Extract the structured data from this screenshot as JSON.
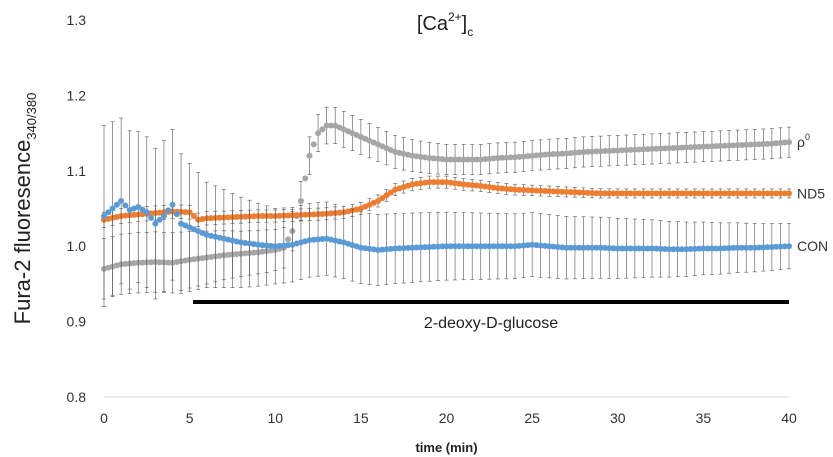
{
  "chart_data": {
    "type": "scatter",
    "title": "[Ca2+]c",
    "title_parts": {
      "base": "[Ca",
      "superscript": "2+",
      "close": "]",
      "subscript": "c"
    },
    "xlabel": "time (min)",
    "ylabel": "Fura-2 fluoresence340/380",
    "ylabel_parts": {
      "base": "Fura-2 fluoresence",
      "subscript": "340/380"
    },
    "xlim": [
      0,
      40
    ],
    "ylim": [
      0.8,
      1.3
    ],
    "x_ticks": [
      "0",
      "5",
      "10",
      "15",
      "20",
      "25",
      "30",
      "35",
      "40"
    ],
    "y_ticks": [
      "0.8",
      "0.9",
      "1.0",
      "1.1",
      "1.2",
      "1.3"
    ],
    "grid": false,
    "error_bars": true,
    "treatment_bar": {
      "label": "2-deoxy-D-glucose",
      "x_start": 5.2,
      "x_end": 40,
      "y": 0.926
    },
    "series": [
      {
        "name": "ρ0",
        "label_parts": {
          "base": "ρ",
          "superscript": "0"
        },
        "color": "#a6a6a6",
        "points": [
          [
            0,
            0.97
          ],
          [
            1,
            0.976
          ],
          [
            2,
            0.978
          ],
          [
            3,
            0.979
          ],
          [
            4,
            0.978
          ],
          [
            5,
            0.982
          ],
          [
            6,
            0.985
          ],
          [
            7,
            0.988
          ],
          [
            8,
            0.99
          ],
          [
            9,
            0.992
          ],
          [
            10,
            0.995
          ],
          [
            10.5,
            0.998
          ],
          [
            11,
            1.02
          ],
          [
            11.5,
            1.06
          ],
          [
            12,
            1.12
          ],
          [
            12.5,
            1.15
          ],
          [
            13,
            1.16
          ],
          [
            13.5,
            1.16
          ],
          [
            14,
            1.155
          ],
          [
            15,
            1.145
          ],
          [
            16,
            1.135
          ],
          [
            17,
            1.125
          ],
          [
            18,
            1.12
          ],
          [
            19,
            1.117
          ],
          [
            20,
            1.115
          ],
          [
            21,
            1.115
          ],
          [
            22,
            1.115
          ],
          [
            23,
            1.117
          ],
          [
            24,
            1.118
          ],
          [
            25,
            1.12
          ],
          [
            26,
            1.122
          ],
          [
            27,
            1.123
          ],
          [
            28,
            1.125
          ],
          [
            29,
            1.126
          ],
          [
            30,
            1.127
          ],
          [
            31,
            1.128
          ],
          [
            32,
            1.129
          ],
          [
            33,
            1.13
          ],
          [
            34,
            1.131
          ],
          [
            35,
            1.132
          ],
          [
            36,
            1.133
          ],
          [
            37,
            1.134
          ],
          [
            38,
            1.135
          ],
          [
            39,
            1.136
          ],
          [
            40,
            1.138
          ]
        ],
        "error": [
          [
            0,
            0.04
          ],
          [
            4,
            0.04
          ],
          [
            8,
            0.03
          ],
          [
            12,
            0.025
          ],
          [
            20,
            0.02
          ],
          [
            30,
            0.02
          ],
          [
            40,
            0.02
          ]
        ]
      },
      {
        "name": "ND5",
        "color": "#ed7d31",
        "points": [
          [
            0,
            1.035
          ],
          [
            1,
            1.04
          ],
          [
            2,
            1.042
          ],
          [
            3,
            1.044
          ],
          [
            4,
            1.046
          ],
          [
            5,
            1.045
          ],
          [
            5.5,
            1.035
          ],
          [
            6,
            1.037
          ],
          [
            7,
            1.038
          ],
          [
            8,
            1.039
          ],
          [
            9,
            1.04
          ],
          [
            10,
            1.04
          ],
          [
            11,
            1.041
          ],
          [
            12,
            1.042
          ],
          [
            13,
            1.043
          ],
          [
            14,
            1.045
          ],
          [
            15,
            1.05
          ],
          [
            16,
            1.06
          ],
          [
            17,
            1.075
          ],
          [
            18,
            1.082
          ],
          [
            19,
            1.085
          ],
          [
            20,
            1.085
          ],
          [
            21,
            1.082
          ],
          [
            22,
            1.08
          ],
          [
            23,
            1.077
          ],
          [
            24,
            1.075
          ],
          [
            25,
            1.074
          ],
          [
            26,
            1.073
          ],
          [
            27,
            1.072
          ],
          [
            28,
            1.071
          ],
          [
            29,
            1.07
          ],
          [
            30,
            1.07
          ],
          [
            31,
            1.07
          ],
          [
            32,
            1.07
          ],
          [
            33,
            1.07
          ],
          [
            34,
            1.07
          ],
          [
            35,
            1.07
          ],
          [
            36,
            1.07
          ],
          [
            37,
            1.07
          ],
          [
            38,
            1.07
          ],
          [
            39,
            1.07
          ],
          [
            40,
            1.07
          ]
        ],
        "error": [
          [
            0,
            0.01
          ],
          [
            10,
            0.008
          ],
          [
            20,
            0.008
          ],
          [
            30,
            0.006
          ],
          [
            40,
            0.006
          ]
        ]
      },
      {
        "name": "CON",
        "color": "#5b9bd5",
        "points": [
          [
            0,
            1.04
          ],
          [
            0.5,
            1.05
          ],
          [
            1,
            1.06
          ],
          [
            1.5,
            1.048
          ],
          [
            2,
            1.052
          ],
          [
            2.5,
            1.045
          ],
          [
            3,
            1.03
          ],
          [
            3.5,
            1.04
          ],
          [
            4,
            1.055
          ],
          [
            4.5,
            1.03
          ],
          [
            5,
            1.025
          ],
          [
            6,
            1.015
          ],
          [
            7,
            1.01
          ],
          [
            8,
            1.005
          ],
          [
            9,
            1.002
          ],
          [
            10,
            1.0
          ],
          [
            11,
            1.002
          ],
          [
            12,
            1.008
          ],
          [
            13,
            1.01
          ],
          [
            14,
            1.005
          ],
          [
            15,
            0.998
          ],
          [
            16,
            0.995
          ],
          [
            17,
            0.997
          ],
          [
            18,
            0.998
          ],
          [
            19,
            0.999
          ],
          [
            20,
            1.0
          ],
          [
            21,
            1.0
          ],
          [
            22,
            1.0
          ],
          [
            23,
            1.0
          ],
          [
            24,
            1.0
          ],
          [
            25,
            1.002
          ],
          [
            26,
            1.0
          ],
          [
            27,
            0.998
          ],
          [
            28,
            0.998
          ],
          [
            29,
            0.998
          ],
          [
            30,
            0.997
          ],
          [
            31,
            0.997
          ],
          [
            32,
            0.997
          ],
          [
            33,
            0.996
          ],
          [
            34,
            0.996
          ],
          [
            35,
            0.997
          ],
          [
            36,
            0.997
          ],
          [
            37,
            0.998
          ],
          [
            38,
            0.998
          ],
          [
            39,
            0.999
          ],
          [
            40,
            1.0
          ]
        ],
        "error": [
          [
            0,
            0.12
          ],
          [
            2,
            0.1
          ],
          [
            4,
            0.1
          ],
          [
            6,
            0.07
          ],
          [
            10,
            0.05
          ],
          [
            20,
            0.045
          ],
          [
            30,
            0.04
          ],
          [
            40,
            0.03
          ]
        ]
      }
    ]
  }
}
